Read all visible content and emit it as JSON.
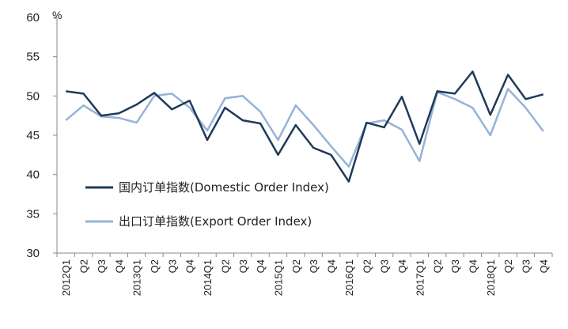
{
  "chart_data": {
    "type": "line",
    "title": "",
    "xlabel": "",
    "ylabel": "",
    "unit": "%",
    "ylim": [
      30,
      60
    ],
    "yticks": [
      30,
      35,
      40,
      45,
      50,
      55,
      60
    ],
    "grid": false,
    "legend_position": "center-left",
    "categories": [
      "2012Q1",
      "Q2",
      "Q3",
      "Q4",
      "2013Q1",
      "Q2",
      "Q3",
      "Q4",
      "2014Q1",
      "Q2",
      "Q3",
      "Q4",
      "2015Q1",
      "Q2",
      "Q3",
      "Q4",
      "2016Q1",
      "Q2",
      "Q3",
      "Q4",
      "2017Q1",
      "Q2",
      "Q3",
      "Q4",
      "2018Q1",
      "Q2",
      "Q3",
      "Q4"
    ],
    "series": [
      {
        "name": "国内订单指数(Domestic  Order Index)",
        "color": "#1f3a5a",
        "values": [
          50.6,
          50.3,
          47.5,
          47.8,
          48.9,
          50.4,
          48.3,
          49.4,
          44.4,
          48.5,
          46.9,
          46.5,
          42.5,
          46.3,
          43.4,
          42.5,
          39.1,
          46.6,
          46.0,
          49.9,
          43.9,
          50.6,
          50.3,
          53.1,
          47.6,
          52.7,
          49.6,
          50.2
        ]
      },
      {
        "name": "出口订单指数(Export Order Index)",
        "color": "#95b3d7",
        "values": [
          46.9,
          48.8,
          47.4,
          47.2,
          46.6,
          50.0,
          50.3,
          48.5,
          45.6,
          49.7,
          50.0,
          48.0,
          44.4,
          48.8,
          46.3,
          43.6,
          41.0,
          46.5,
          46.9,
          45.7,
          41.7,
          50.5,
          49.6,
          48.5,
          45.0,
          50.9,
          48.5,
          45.5
        ]
      }
    ]
  }
}
